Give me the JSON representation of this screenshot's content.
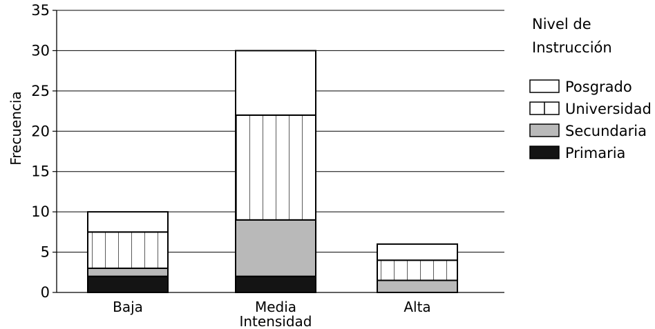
{
  "chart_data": {
    "type": "bar",
    "stacked": true,
    "title": "",
    "xlabel": "",
    "ylabel": "Frecuencia",
    "ylim": [
      0,
      35
    ],
    "yticks": [
      0,
      5,
      10,
      15,
      20,
      25,
      30,
      35
    ],
    "ytick_labels": [
      "0",
      "5",
      "10",
      "15",
      "20",
      "25",
      "30",
      "35"
    ],
    "grid": true,
    "categories": [
      {
        "lines": [
          "Baja"
        ]
      },
      {
        "lines": [
          "Media",
          "Intensidad"
        ]
      },
      {
        "lines": [
          "Alta"
        ]
      }
    ],
    "legend": {
      "title_lines": [
        "Nivel de",
        "Instrucción"
      ],
      "placement": "right"
    },
    "series": [
      {
        "name": "Primaria",
        "values": [
          2,
          2,
          0
        ],
        "pattern": "solid-black"
      },
      {
        "name": "Secundaria",
        "values": [
          1,
          7,
          1.5
        ],
        "pattern": "gray"
      },
      {
        "name": "Universidad",
        "values": [
          4.5,
          13,
          2.5
        ],
        "pattern": "vertical-lines"
      },
      {
        "name": "Posgrado",
        "values": [
          2.5,
          8,
          2
        ],
        "pattern": "white"
      }
    ],
    "colors": {
      "solid-black": "#141414",
      "gray": "#b9b9b9",
      "white": "#ffffff",
      "stroke": "#000000",
      "grid": "#000000"
    }
  }
}
